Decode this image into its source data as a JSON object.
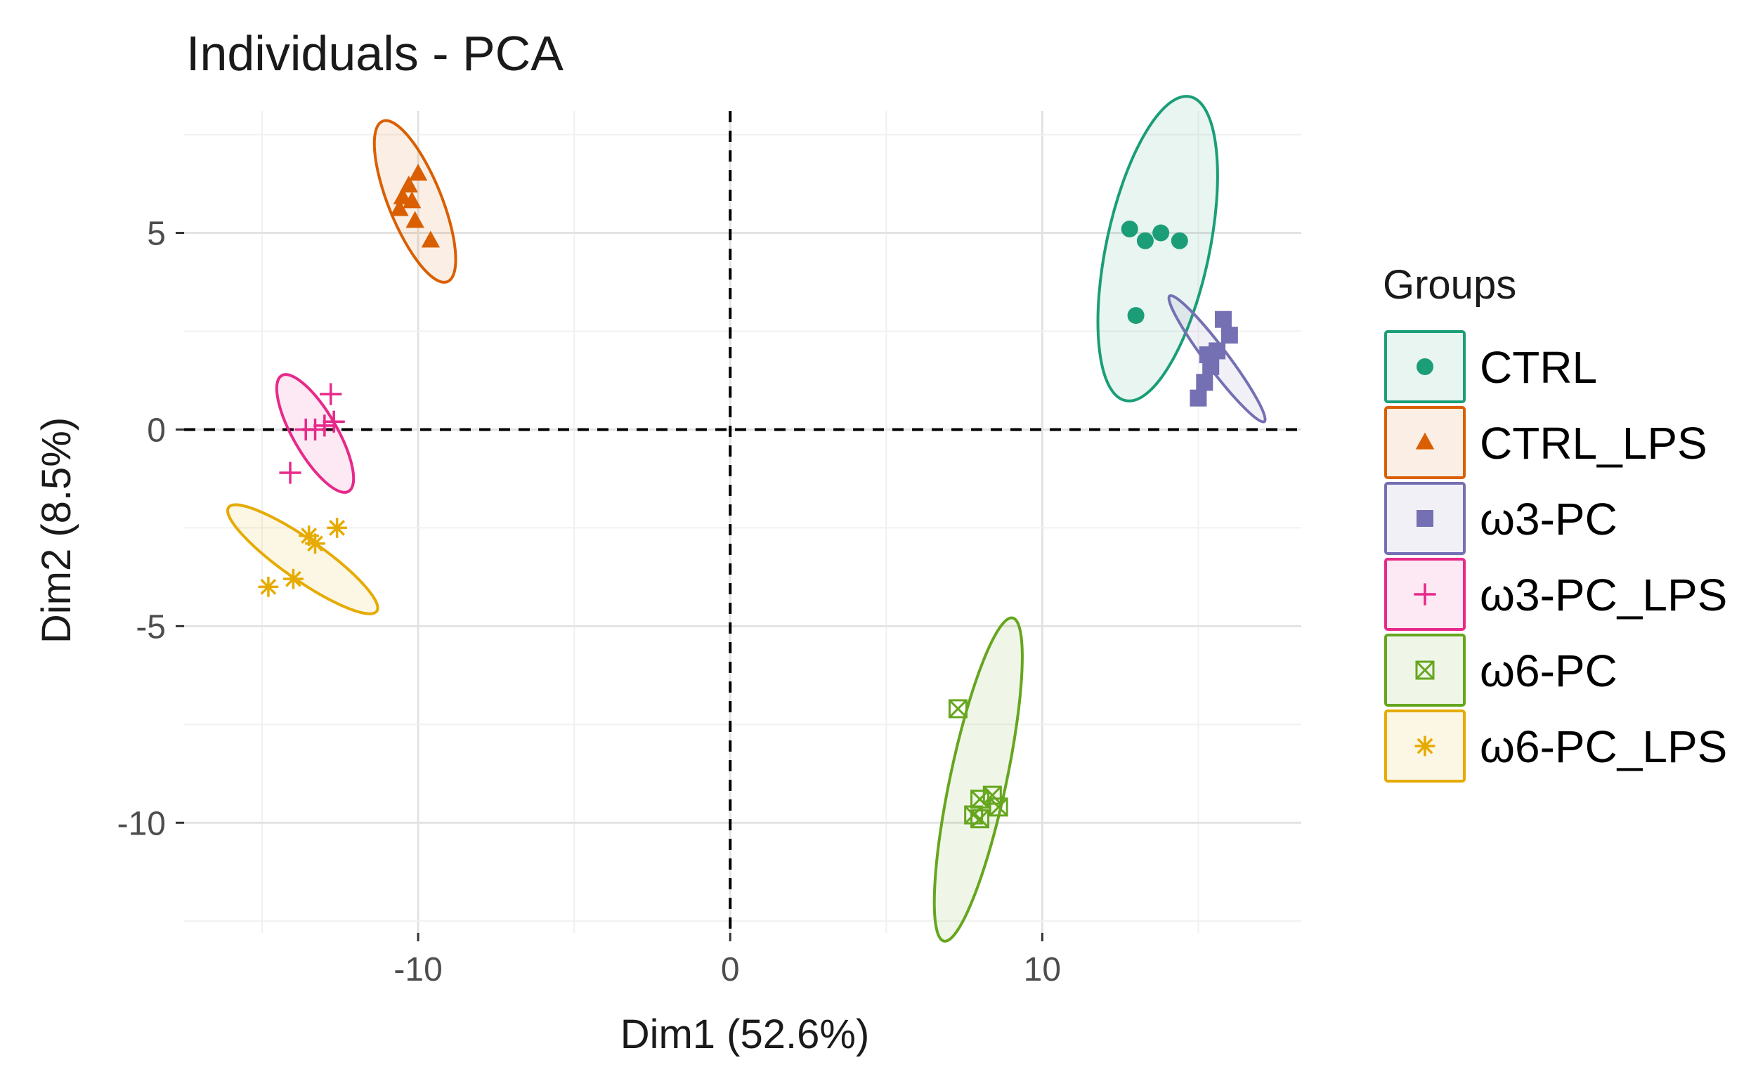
{
  "chart_data": {
    "type": "scatter",
    "title": "Individuals - PCA",
    "xlabel": "Dim1 (52.6%)",
    "ylabel": "Dim2 (8.5%)",
    "xlim": [
      -17.5,
      18.3
    ],
    "ylim": [
      -12.8,
      8.1
    ],
    "x_ticks": [
      -10,
      0,
      10
    ],
    "x_tick_labels": [
      "-10",
      "0",
      "10"
    ],
    "y_ticks": [
      5,
      0,
      -5,
      -10
    ],
    "y_tick_labels": [
      "5",
      "0",
      "-5",
      "-10"
    ],
    "grid": true,
    "reference_lines": {
      "x": 0,
      "y": 0,
      "style": "dashed"
    },
    "legend": {
      "title": "Groups",
      "position": "right"
    },
    "series": [
      {
        "name": "CTRL",
        "color": "#1b9e77",
        "marker": "circle",
        "points": [
          [
            12.8,
            5.1
          ],
          [
            13.3,
            4.8
          ],
          [
            13.8,
            5.0
          ],
          [
            14.4,
            4.8
          ],
          [
            13.0,
            2.9
          ]
        ],
        "ellipse": {
          "center": [
            13.7,
            4.6
          ],
          "rx": 1.65,
          "ry": 3.95,
          "angle": 12
        }
      },
      {
        "name": "CTRL_LPS",
        "color": "#d95f02",
        "marker": "triangle",
        "points": [
          [
            -10.3,
            6.2
          ],
          [
            -10.0,
            6.5
          ],
          [
            -10.5,
            5.9
          ],
          [
            -10.2,
            5.8
          ],
          [
            -10.6,
            5.6
          ],
          [
            -10.1,
            5.3
          ],
          [
            -9.6,
            4.8
          ]
        ],
        "ellipse": {
          "center": [
            -10.1,
            5.8
          ],
          "rx": 0.85,
          "ry": 2.2,
          "angle": -22
        }
      },
      {
        "name": "ω3-PC",
        "color": "#7570b3",
        "marker": "square",
        "points": [
          [
            15.8,
            2.8
          ],
          [
            16.0,
            2.4
          ],
          [
            15.6,
            2.0
          ],
          [
            15.3,
            1.9
          ],
          [
            15.4,
            1.6
          ],
          [
            15.2,
            1.2
          ],
          [
            15.0,
            0.8
          ]
        ],
        "ellipse": {
          "center": [
            15.6,
            1.8
          ],
          "rx": 0.35,
          "ry": 2.0,
          "angle": -37
        }
      },
      {
        "name": "ω3-PC_LPS",
        "color": "#e7298a",
        "marker": "plus",
        "points": [
          [
            -12.8,
            0.9
          ],
          [
            -12.7,
            0.2
          ],
          [
            -13.0,
            0.1
          ],
          [
            -13.3,
            0.0
          ],
          [
            -13.6,
            0.0
          ],
          [
            -14.1,
            -1.1
          ]
        ],
        "ellipse": {
          "center": [
            -13.3,
            -0.1
          ],
          "rx": 0.7,
          "ry": 1.7,
          "angle": -30
        }
      },
      {
        "name": "ω6-PC",
        "color": "#66a61e",
        "marker": "boxx",
        "points": [
          [
            7.3,
            -7.1
          ],
          [
            8.0,
            -9.4
          ],
          [
            8.4,
            -9.3
          ],
          [
            8.6,
            -9.6
          ],
          [
            7.8,
            -9.8
          ],
          [
            8.0,
            -9.9
          ]
        ],
        "ellipse": {
          "center": [
            7.95,
            -8.9
          ],
          "rx": 0.9,
          "ry": 4.2,
          "angle": 12
        }
      },
      {
        "name": "ω6-PC_LPS",
        "color": "#e6ab02",
        "marker": "asterisk",
        "points": [
          [
            -13.5,
            -2.7
          ],
          [
            -12.6,
            -2.5
          ],
          [
            -14.0,
            -3.8
          ],
          [
            -14.8,
            -4.0
          ],
          [
            -13.3,
            -2.9
          ]
        ],
        "ellipse": {
          "center": [
            -13.7,
            -3.3
          ],
          "rx": 0.65,
          "ry": 2.3,
          "angle": -55
        }
      }
    ]
  }
}
